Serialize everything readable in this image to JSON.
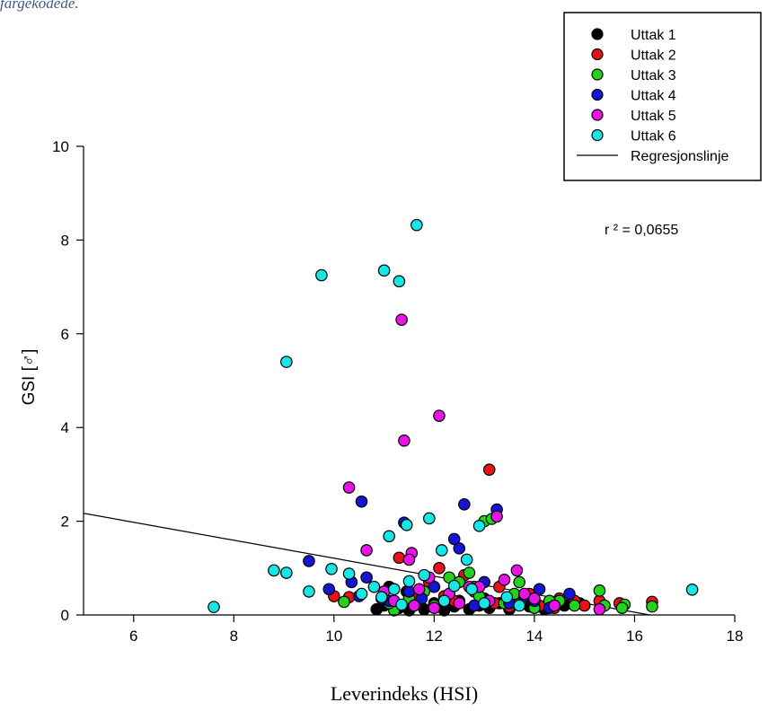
{
  "caption": "fargekodede.",
  "chart_data": {
    "type": "scatter",
    "xlabel": "Leverindeks (HSI)",
    "ylabel": "GSI [♂]",
    "xlim": [
      5,
      18
    ],
    "ylim": [
      0,
      10
    ],
    "xticks": [
      6,
      8,
      10,
      12,
      14,
      16,
      18
    ],
    "yticks": [
      0,
      2,
      4,
      6,
      8,
      10
    ],
    "annotation": "r ²  = 0,0655",
    "legend_position": "top-right",
    "regression": {
      "label": "Regresjonslinje",
      "intercept": 3.13,
      "slope": -0.192
    },
    "series": [
      {
        "name": "Uttak 1",
        "color": "#000000",
        "x": [
          10.85,
          11.0,
          11.1,
          11.3,
          11.5,
          11.6,
          11.8,
          12.0,
          12.2,
          12.4,
          12.5,
          12.7,
          12.9,
          13.1,
          13.3,
          13.5,
          13.7,
          13.9,
          14.2,
          14.6,
          14.9,
          11.45,
          12.3,
          13.0
        ],
        "y": [
          0.12,
          0.2,
          0.6,
          0.15,
          0.1,
          0.3,
          0.12,
          0.25,
          0.1,
          0.18,
          0.3,
          0.12,
          0.2,
          0.15,
          0.25,
          0.12,
          0.3,
          0.18,
          0.12,
          0.2,
          0.25,
          0.5,
          0.45,
          0.35
        ]
      },
      {
        "name": "Uttak 2",
        "color": "#e8131a",
        "x": [
          13.1,
          11.3,
          12.1,
          10.0,
          10.3,
          12.6,
          13.3,
          13.6,
          14.5,
          14.8,
          15.3,
          15.7,
          16.35,
          11.9,
          12.8,
          13.9,
          14.1,
          11.6,
          12.4,
          13.2,
          15.0,
          14.4,
          12.2,
          13.5
        ],
        "y": [
          3.1,
          1.22,
          1.0,
          0.4,
          0.38,
          0.85,
          0.6,
          0.4,
          0.35,
          0.3,
          0.3,
          0.25,
          0.28,
          0.7,
          0.5,
          0.45,
          0.2,
          0.35,
          0.3,
          0.25,
          0.2,
          0.15,
          0.4,
          0.18
        ]
      },
      {
        "name": "Uttak 3",
        "color": "#22d21e",
        "x": [
          13.0,
          13.15,
          12.7,
          15.3,
          15.8,
          16.35,
          10.2,
          11.2,
          11.5,
          12.0,
          12.5,
          13.7,
          14.5,
          15.4,
          11.8,
          12.8,
          13.4,
          14.0,
          14.8,
          12.3,
          11.1,
          13.6,
          14.3,
          15.75,
          12.9
        ],
        "y": [
          2.0,
          2.05,
          0.9,
          0.52,
          0.22,
          0.18,
          0.28,
          0.1,
          0.35,
          0.2,
          0.7,
          0.7,
          0.3,
          0.2,
          0.5,
          0.6,
          0.25,
          0.15,
          0.2,
          0.8,
          0.25,
          0.45,
          0.3,
          0.15,
          0.4
        ]
      },
      {
        "name": "Uttak 4",
        "color": "#1414d2",
        "x": [
          10.55,
          12.6,
          13.25,
          12.4,
          12.5,
          9.5,
          9.9,
          10.35,
          10.65,
          11.4,
          11.5,
          12.0,
          13.8,
          14.1,
          14.7,
          11.75,
          12.2,
          13.0,
          13.5,
          14.0,
          10.5,
          11.1,
          12.8,
          14.3
        ],
        "y": [
          2.42,
          2.36,
          2.25,
          1.62,
          1.42,
          1.15,
          0.55,
          0.7,
          0.8,
          1.97,
          0.5,
          0.6,
          0.4,
          0.55,
          0.45,
          0.35,
          0.3,
          0.7,
          0.25,
          0.3,
          0.4,
          0.3,
          0.2,
          0.15
        ]
      },
      {
        "name": "Uttak 5",
        "color": "#e615e6",
        "x": [
          11.35,
          12.1,
          11.4,
          10.3,
          10.65,
          11.55,
          11.5,
          13.25,
          13.65,
          11.0,
          11.9,
          12.3,
          12.7,
          13.1,
          13.4,
          14.0,
          14.4,
          15.3,
          11.2,
          11.7,
          12.5,
          13.8,
          12.0,
          12.9,
          11.6,
          10.95
        ],
        "y": [
          6.3,
          4.25,
          3.72,
          2.72,
          1.38,
          1.32,
          1.18,
          2.1,
          0.95,
          0.5,
          0.8,
          0.45,
          0.6,
          0.3,
          0.75,
          0.35,
          0.2,
          0.12,
          0.3,
          0.55,
          0.25,
          0.45,
          0.15,
          0.6,
          0.2,
          0.35
        ]
      },
      {
        "name": "Uttak 6",
        "color": "#15e6e6",
        "x": [
          11.65,
          9.75,
          11.0,
          11.3,
          9.05,
          7.6,
          11.1,
          11.45,
          11.9,
          12.15,
          12.65,
          12.9,
          8.8,
          9.05,
          9.5,
          9.95,
          10.3,
          10.55,
          10.95,
          11.2,
          11.5,
          11.8,
          12.4,
          12.75,
          13.45,
          17.15,
          11.35,
          12.2,
          13.0,
          13.7,
          10.8
        ],
        "y": [
          8.32,
          7.25,
          7.35,
          7.12,
          5.4,
          0.17,
          1.68,
          1.92,
          2.06,
          1.38,
          1.18,
          1.9,
          0.95,
          0.9,
          0.5,
          0.98,
          0.88,
          0.45,
          0.38,
          0.55,
          0.72,
          0.85,
          0.62,
          0.55,
          0.38,
          0.54,
          0.22,
          0.3,
          0.25,
          0.2,
          0.6
        ]
      }
    ]
  }
}
